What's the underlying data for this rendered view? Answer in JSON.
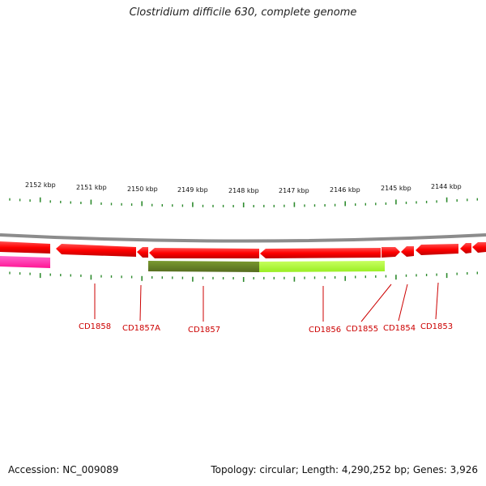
{
  "title": "Clostridium difficile 630, complete genome",
  "footer": {
    "accession": "Accession: NC_009089",
    "info": "Topology: circular; Length: 4,290,252 bp; Genes: 3,926"
  },
  "colors": {
    "forward_gene": "#ff0000",
    "reverse_gene": "#ff0000",
    "dark_feature": "#6b8e23",
    "light_feature": "#adff2f",
    "magenta_feature": "#ff1493",
    "tick": "#2e8b2e",
    "backbone": "#808080",
    "label": "#cc0000"
  },
  "kbp_labels": [
    "2152 kbp",
    "2151 kbp",
    "2150 kbp",
    "2149 kbp",
    "2148 kbp",
    "2147 kbp",
    "2146 kbp",
    "2145 kbp",
    "2144 kbp"
  ],
  "gene_labels": [
    "CD1858",
    "CD1857A",
    "CD1857",
    "CD1856",
    "CD1855",
    "CD1854",
    "CD1853"
  ]
}
